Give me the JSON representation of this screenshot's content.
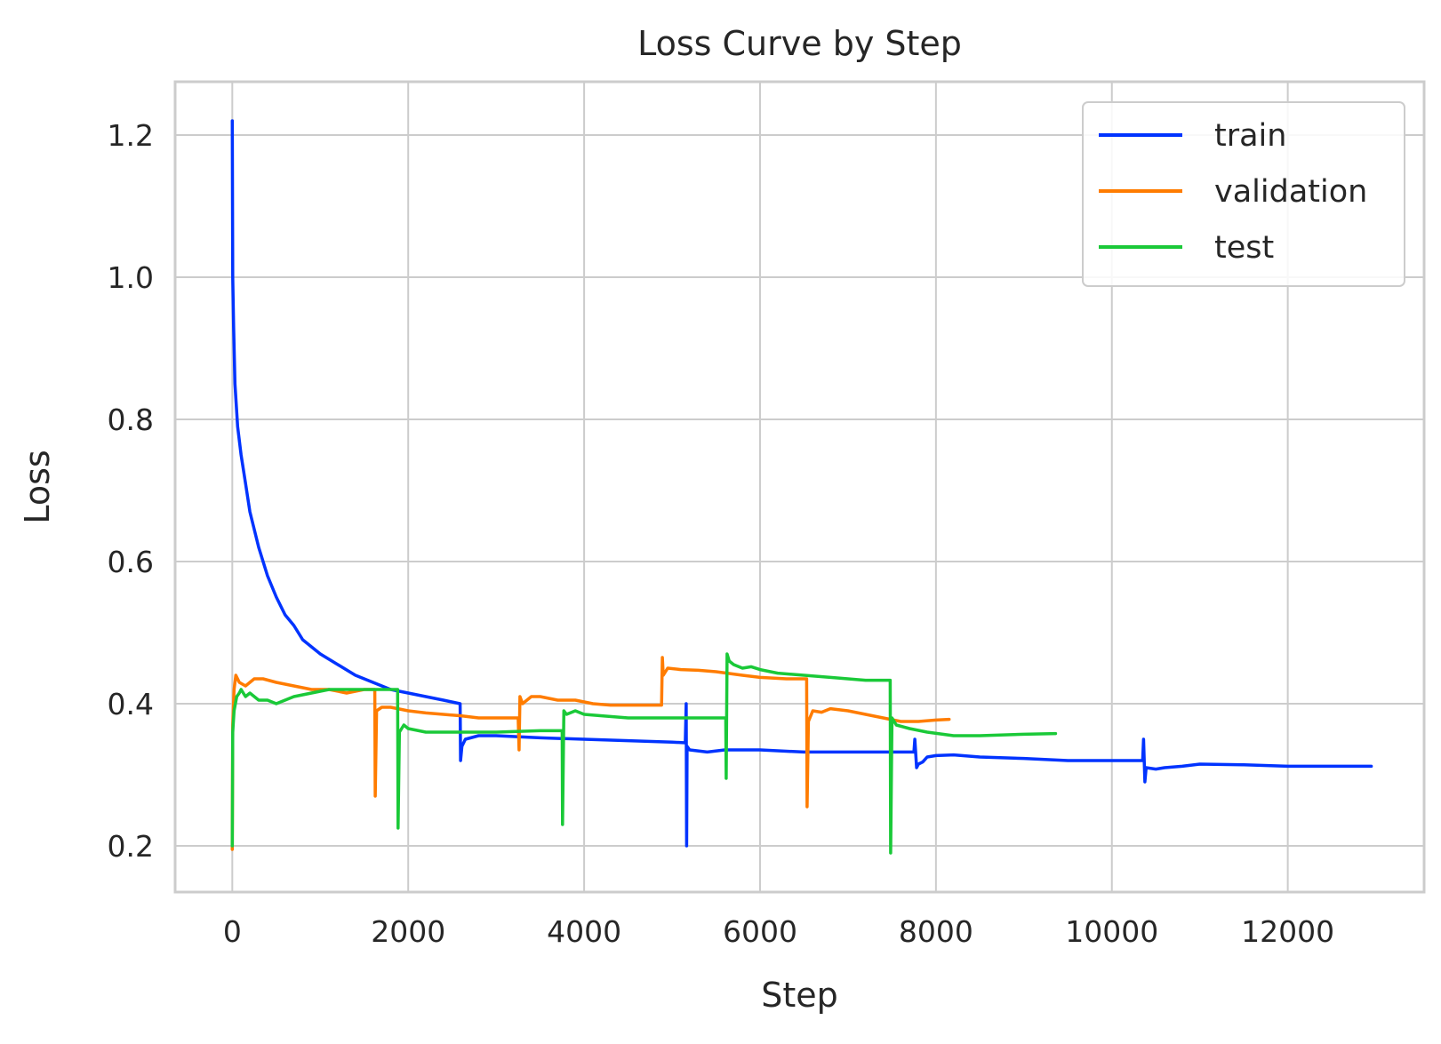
{
  "chart_data": {
    "type": "line",
    "title": "Loss Curve by Step",
    "xlabel": "Step",
    "ylabel": "Loss",
    "xlim": [
      -650,
      13550
    ],
    "ylim": [
      0.135,
      1.275
    ],
    "xticks": [
      0,
      2000,
      4000,
      6000,
      8000,
      10000,
      12000
    ],
    "yticks": [
      0.2,
      0.4,
      0.6,
      0.8,
      1.0,
      1.2
    ],
    "xtick_labels": [
      "0",
      "2000",
      "4000",
      "6000",
      "8000",
      "10000",
      "12000"
    ],
    "ytick_labels": [
      "0.2",
      "0.4",
      "0.6",
      "0.8",
      "1.0",
      "1.2"
    ],
    "grid": true,
    "legend_position": "top-right",
    "series": [
      {
        "name": "train",
        "color": "#0033ff",
        "points": [
          [
            0,
            1.22
          ],
          [
            5,
            1.0
          ],
          [
            15,
            0.93
          ],
          [
            30,
            0.85
          ],
          [
            60,
            0.79
          ],
          [
            100,
            0.75
          ],
          [
            150,
            0.71
          ],
          [
            200,
            0.67
          ],
          [
            300,
            0.62
          ],
          [
            400,
            0.58
          ],
          [
            500,
            0.55
          ],
          [
            600,
            0.525
          ],
          [
            700,
            0.51
          ],
          [
            800,
            0.49
          ],
          [
            1000,
            0.47
          ],
          [
            1200,
            0.455
          ],
          [
            1400,
            0.44
          ],
          [
            1600,
            0.43
          ],
          [
            1800,
            0.42
          ],
          [
            2000,
            0.415
          ],
          [
            2200,
            0.41
          ],
          [
            2400,
            0.405
          ],
          [
            2590,
            0.4
          ],
          [
            2595,
            0.32
          ],
          [
            2610,
            0.34
          ],
          [
            2650,
            0.35
          ],
          [
            2800,
            0.355
          ],
          [
            3000,
            0.355
          ],
          [
            3500,
            0.352
          ],
          [
            4000,
            0.35
          ],
          [
            4500,
            0.348
          ],
          [
            5000,
            0.346
          ],
          [
            5150,
            0.345
          ],
          [
            5160,
            0.4
          ],
          [
            5165,
            0.2
          ],
          [
            5170,
            0.34
          ],
          [
            5200,
            0.335
          ],
          [
            5400,
            0.332
          ],
          [
            5600,
            0.335
          ],
          [
            6000,
            0.335
          ],
          [
            6500,
            0.332
          ],
          [
            7000,
            0.332
          ],
          [
            7500,
            0.332
          ],
          [
            7750,
            0.332
          ],
          [
            7760,
            0.35
          ],
          [
            7780,
            0.31
          ],
          [
            7800,
            0.315
          ],
          [
            7850,
            0.318
          ],
          [
            7900,
            0.325
          ],
          [
            8000,
            0.327
          ],
          [
            8200,
            0.328
          ],
          [
            8500,
            0.325
          ],
          [
            9000,
            0.323
          ],
          [
            9500,
            0.32
          ],
          [
            10000,
            0.32
          ],
          [
            10350,
            0.32
          ],
          [
            10360,
            0.35
          ],
          [
            10375,
            0.29
          ],
          [
            10390,
            0.31
          ],
          [
            10500,
            0.308
          ],
          [
            10600,
            0.31
          ],
          [
            10800,
            0.312
          ],
          [
            11000,
            0.315
          ],
          [
            11500,
            0.314
          ],
          [
            12000,
            0.312
          ],
          [
            12500,
            0.312
          ],
          [
            12950,
            0.312
          ]
        ]
      },
      {
        "name": "validation",
        "color": "#ff7c00",
        "points": [
          [
            0,
            0.195
          ],
          [
            5,
            0.37
          ],
          [
            20,
            0.42
          ],
          [
            40,
            0.44
          ],
          [
            80,
            0.43
          ],
          [
            150,
            0.425
          ],
          [
            250,
            0.435
          ],
          [
            350,
            0.435
          ],
          [
            500,
            0.43
          ],
          [
            700,
            0.425
          ],
          [
            900,
            0.42
          ],
          [
            1100,
            0.42
          ],
          [
            1300,
            0.415
          ],
          [
            1500,
            0.42
          ],
          [
            1620,
            0.42
          ],
          [
            1625,
            0.27
          ],
          [
            1640,
            0.39
          ],
          [
            1700,
            0.395
          ],
          [
            1800,
            0.395
          ],
          [
            2000,
            0.39
          ],
          [
            2200,
            0.387
          ],
          [
            2400,
            0.385
          ],
          [
            2600,
            0.383
          ],
          [
            2800,
            0.38
          ],
          [
            3000,
            0.38
          ],
          [
            3250,
            0.38
          ],
          [
            3260,
            0.335
          ],
          [
            3270,
            0.41
          ],
          [
            3300,
            0.4
          ],
          [
            3400,
            0.41
          ],
          [
            3500,
            0.41
          ],
          [
            3700,
            0.405
          ],
          [
            3900,
            0.405
          ],
          [
            4100,
            0.4
          ],
          [
            4300,
            0.398
          ],
          [
            4500,
            0.398
          ],
          [
            4880,
            0.398
          ],
          [
            4890,
            0.465
          ],
          [
            4900,
            0.44
          ],
          [
            4950,
            0.45
          ],
          [
            5100,
            0.448
          ],
          [
            5300,
            0.447
          ],
          [
            5500,
            0.445
          ],
          [
            5800,
            0.44
          ],
          [
            6000,
            0.437
          ],
          [
            6300,
            0.435
          ],
          [
            6530,
            0.435
          ],
          [
            6535,
            0.255
          ],
          [
            6550,
            0.375
          ],
          [
            6600,
            0.39
          ],
          [
            6700,
            0.388
          ],
          [
            6800,
            0.393
          ],
          [
            7000,
            0.39
          ],
          [
            7200,
            0.385
          ],
          [
            7400,
            0.38
          ],
          [
            7600,
            0.375
          ],
          [
            7800,
            0.375
          ],
          [
            8000,
            0.377
          ],
          [
            8150,
            0.378
          ]
        ]
      },
      {
        "name": "test",
        "color": "#1ac938",
        "points": [
          [
            0,
            0.2
          ],
          [
            5,
            0.36
          ],
          [
            20,
            0.39
          ],
          [
            50,
            0.41
          ],
          [
            80,
            0.415
          ],
          [
            100,
            0.42
          ],
          [
            150,
            0.41
          ],
          [
            200,
            0.415
          ],
          [
            300,
            0.405
          ],
          [
            400,
            0.405
          ],
          [
            500,
            0.4
          ],
          [
            700,
            0.41
          ],
          [
            900,
            0.415
          ],
          [
            1100,
            0.42
          ],
          [
            1300,
            0.42
          ],
          [
            1500,
            0.42
          ],
          [
            1700,
            0.42
          ],
          [
            1880,
            0.42
          ],
          [
            1885,
            0.225
          ],
          [
            1900,
            0.36
          ],
          [
            1950,
            0.37
          ],
          [
            2000,
            0.365
          ],
          [
            2200,
            0.36
          ],
          [
            2500,
            0.36
          ],
          [
            3000,
            0.36
          ],
          [
            3500,
            0.362
          ],
          [
            3750,
            0.362
          ],
          [
            3755,
            0.23
          ],
          [
            3770,
            0.39
          ],
          [
            3800,
            0.385
          ],
          [
            3900,
            0.39
          ],
          [
            4000,
            0.385
          ],
          [
            4200,
            0.383
          ],
          [
            4500,
            0.38
          ],
          [
            5000,
            0.38
          ],
          [
            5300,
            0.38
          ],
          [
            5610,
            0.38
          ],
          [
            5615,
            0.295
          ],
          [
            5625,
            0.47
          ],
          [
            5650,
            0.46
          ],
          [
            5700,
            0.455
          ],
          [
            5800,
            0.45
          ],
          [
            5900,
            0.452
          ],
          [
            6000,
            0.448
          ],
          [
            6200,
            0.443
          ],
          [
            6500,
            0.44
          ],
          [
            6800,
            0.437
          ],
          [
            7200,
            0.433
          ],
          [
            7480,
            0.433
          ],
          [
            7485,
            0.19
          ],
          [
            7500,
            0.38
          ],
          [
            7550,
            0.37
          ],
          [
            7700,
            0.365
          ],
          [
            7900,
            0.36
          ],
          [
            8200,
            0.355
          ],
          [
            8500,
            0.355
          ],
          [
            9000,
            0.357
          ],
          [
            9360,
            0.358
          ]
        ]
      }
    ]
  }
}
